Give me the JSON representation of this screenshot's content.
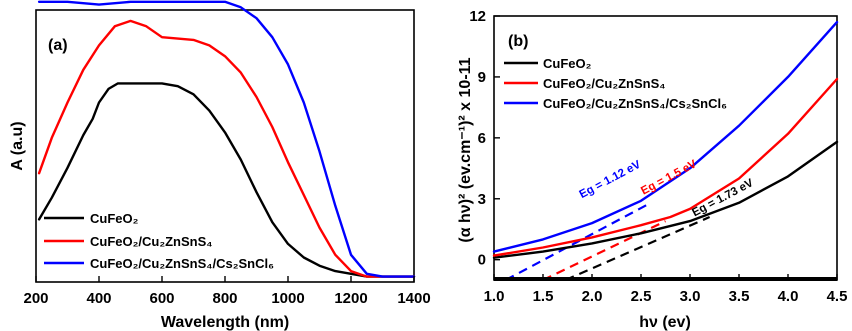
{
  "chart_data": [
    {
      "type": "line",
      "panel_label": "(a)",
      "xlabel": "Wavelength (nm)",
      "ylabel": "A (a.u)",
      "xlim": [
        200,
        1400
      ],
      "ylim": [
        0,
        1.0
      ],
      "xticks": [
        "200",
        "400",
        "600",
        "800",
        "1000",
        "1200",
        "1400"
      ],
      "legend_position": "bottom-left",
      "series": [
        {
          "name": "CuFeO₂",
          "color": "#000000",
          "x": [
            210,
            250,
            300,
            350,
            380,
            400,
            430,
            460,
            500,
            600,
            650,
            700,
            750,
            800,
            850,
            900,
            950,
            1000,
            1050,
            1100,
            1150,
            1200,
            1250,
            1300,
            1400
          ],
          "y": [
            0.23,
            0.31,
            0.42,
            0.54,
            0.6,
            0.66,
            0.71,
            0.73,
            0.73,
            0.73,
            0.72,
            0.69,
            0.63,
            0.55,
            0.45,
            0.33,
            0.22,
            0.14,
            0.09,
            0.06,
            0.04,
            0.03,
            0.02,
            0.02,
            0.02
          ]
        },
        {
          "name": "CuFeO₂/Cu₂ZnSnS₄",
          "color": "#ff0000",
          "x": [
            210,
            250,
            300,
            350,
            400,
            450,
            500,
            550,
            600,
            700,
            750,
            800,
            850,
            900,
            950,
            1000,
            1050,
            1100,
            1150,
            1200,
            1250,
            1300,
            1400
          ],
          "y": [
            0.4,
            0.53,
            0.66,
            0.78,
            0.87,
            0.94,
            0.96,
            0.94,
            0.9,
            0.89,
            0.87,
            0.83,
            0.77,
            0.68,
            0.57,
            0.44,
            0.32,
            0.2,
            0.1,
            0.04,
            0.02,
            0.02,
            0.02
          ]
        },
        {
          "name": "CuFeO₂/Cu₂ZnSnS₄/Cs₂SnCl₆",
          "color": "#0000ff",
          "x": [
            210,
            300,
            400,
            500,
            600,
            700,
            800,
            850,
            900,
            950,
            1000,
            1050,
            1100,
            1150,
            1200,
            1250,
            1300,
            1400
          ],
          "y": [
            1.03,
            1.03,
            1.02,
            1.03,
            1.03,
            1.03,
            1.03,
            1.01,
            0.97,
            0.9,
            0.8,
            0.66,
            0.48,
            0.28,
            0.1,
            0.03,
            0.02,
            0.02
          ]
        }
      ]
    },
    {
      "type": "line",
      "panel_label": "(b)",
      "xlabel": "hν (ev)",
      "ylabel": "(α hν)² (ev.cm⁻¹)² x 10-11",
      "xlim": [
        1.0,
        4.5
      ],
      "ylim": [
        -1,
        12
      ],
      "xticks": [
        "1.0",
        "1.5",
        "2.0",
        "2.5",
        "3.0",
        "3.5",
        "4.0",
        "4.5"
      ],
      "yticks": [
        "0",
        "3",
        "6",
        "9",
        "12"
      ],
      "legend_position": "top-left",
      "series": [
        {
          "name": "CuFeO₂",
          "color": "#000000",
          "x": [
            1.0,
            1.5,
            2.0,
            2.5,
            3.0,
            3.5,
            4.0,
            4.5
          ],
          "y": [
            0.1,
            0.4,
            0.8,
            1.3,
            1.9,
            2.8,
            4.1,
            5.8
          ]
        },
        {
          "name": "CuFeO₂/Cu₂ZnSnS₄",
          "color": "#ff0000",
          "x": [
            1.0,
            1.5,
            2.0,
            2.5,
            2.8,
            3.0,
            3.5,
            4.0,
            4.5
          ],
          "y": [
            0.2,
            0.6,
            1.1,
            1.7,
            2.1,
            2.5,
            4.0,
            6.2,
            8.9
          ]
        },
        {
          "name": "CuFeO₂/Cu₂ZnSnS₄/Cs₂SnCl₆",
          "color": "#0000ff",
          "x": [
            1.0,
            1.5,
            2.0,
            2.5,
            3.0,
            3.5,
            4.0,
            4.5
          ],
          "y": [
            0.4,
            1.0,
            1.8,
            2.9,
            4.5,
            6.6,
            9.0,
            11.7
          ]
        }
      ],
      "tangents": [
        {
          "color": "#000000",
          "x": [
            1.73,
            3.2
          ],
          "y": [
            -1.0,
            2.1
          ]
        },
        {
          "color": "#ff0000",
          "x": [
            1.5,
            2.75
          ],
          "y": [
            -1.0,
            1.9
          ]
        },
        {
          "color": "#0000ff",
          "x": [
            1.12,
            2.6
          ],
          "y": [
            -1.0,
            2.8
          ]
        }
      ],
      "annotations": [
        {
          "text": "Eg = 1.12 eV",
          "color": "#0000ff",
          "x": 2.2,
          "y": 3.8
        },
        {
          "text": "Eg = 1.5 eV",
          "color": "#ff0000",
          "x": 2.8,
          "y": 3.9
        },
        {
          "text": "Eg = 1.73 eV",
          "color": "#000000",
          "x": 3.35,
          "y": 2.9
        }
      ]
    }
  ]
}
